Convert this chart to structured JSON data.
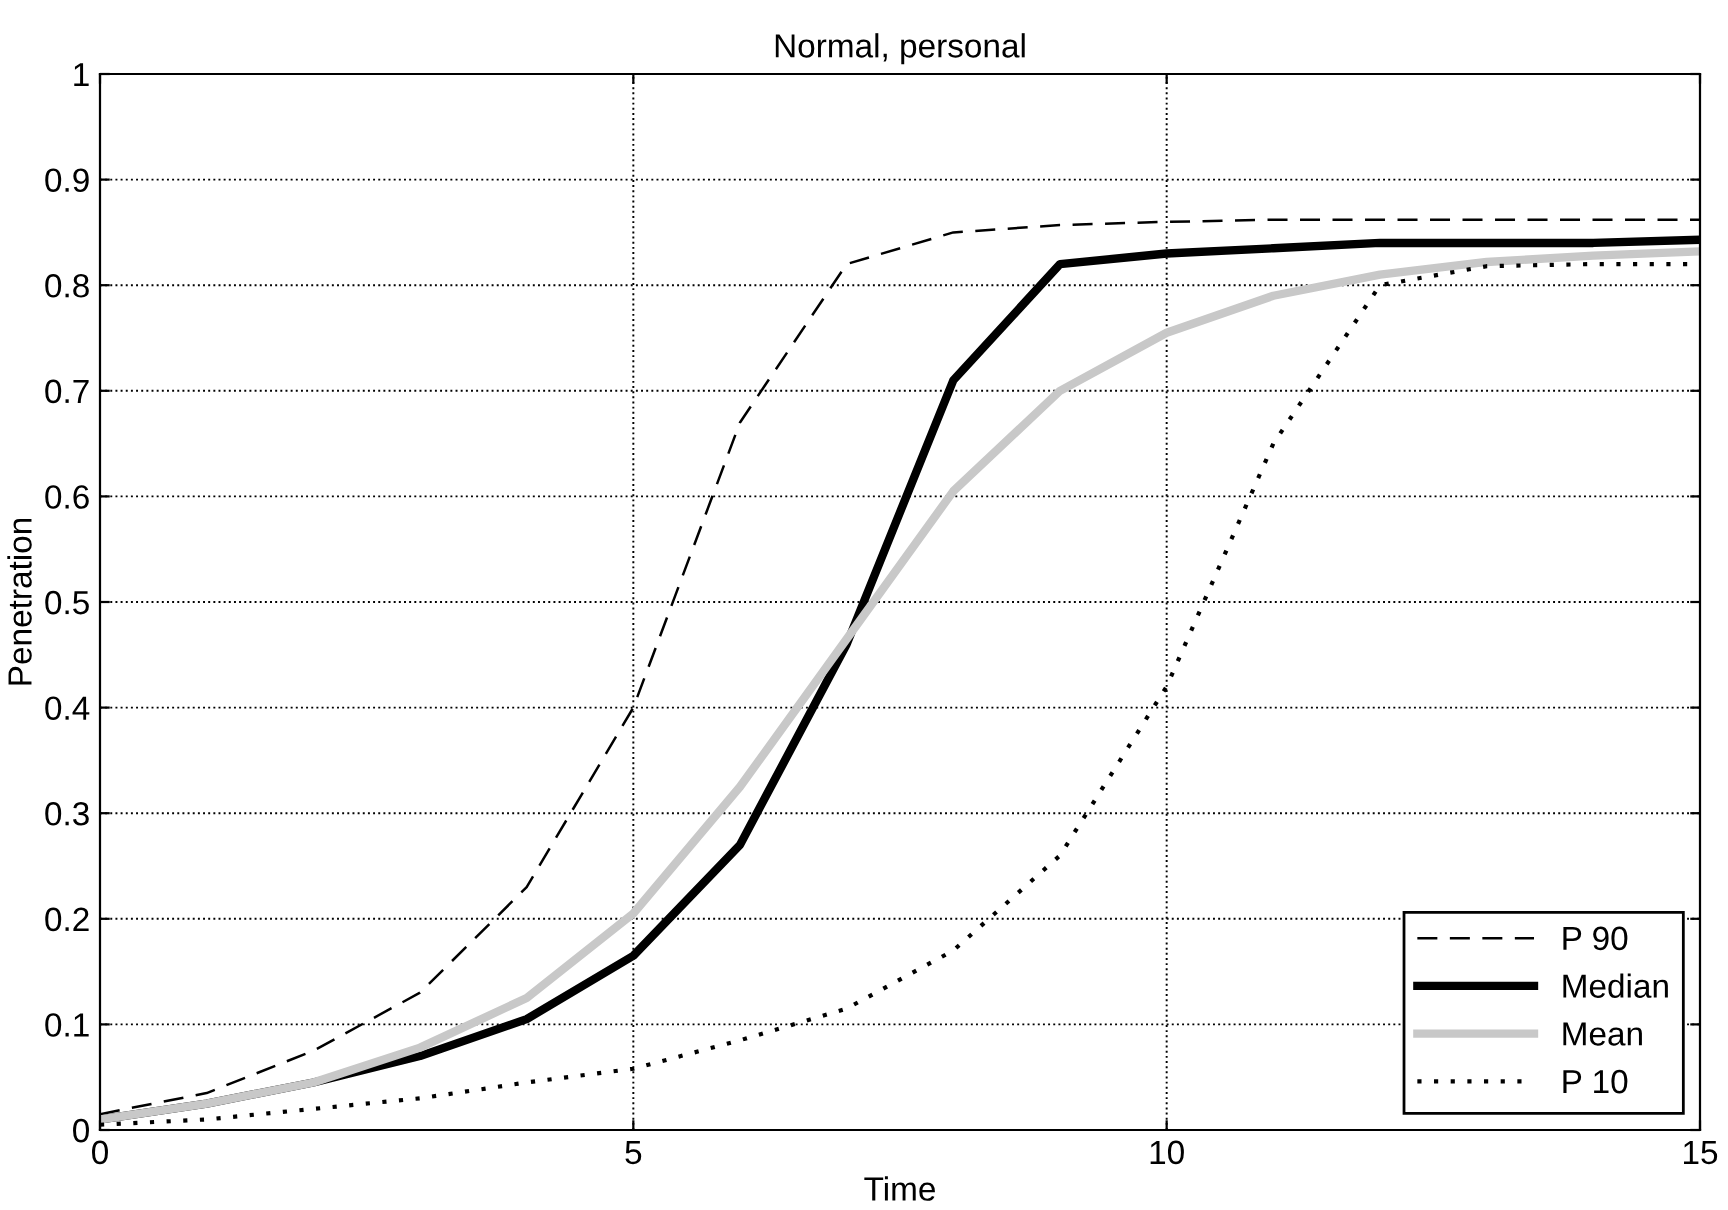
{
  "chart_data": {
    "type": "line",
    "title": "Normal, personal",
    "xlabel": "Time",
    "ylabel": "Penetration",
    "x": [
      0,
      1,
      2,
      3,
      4,
      5,
      6,
      7,
      8,
      9,
      10,
      11,
      12,
      13,
      14,
      15
    ],
    "series": [
      {
        "name": "P 90",
        "color": "#000000",
        "line_style": "dashed",
        "values": [
          0.015,
          0.035,
          0.075,
          0.13,
          0.23,
          0.4,
          0.67,
          0.82,
          0.85,
          0.857,
          0.86,
          0.862,
          0.862,
          0.862,
          0.862,
          0.862
        ]
      },
      {
        "name": "Median",
        "color": "#000000",
        "line_style": "solid",
        "values": [
          0.01,
          0.025,
          0.045,
          0.07,
          0.105,
          0.165,
          0.27,
          0.46,
          0.71,
          0.82,
          0.83,
          0.835,
          0.84,
          0.84,
          0.84,
          0.843
        ]
      },
      {
        "name": "Mean",
        "color": "#c8c8c8",
        "line_style": "solid",
        "values": [
          0.01,
          0.025,
          0.045,
          0.078,
          0.125,
          0.205,
          0.325,
          0.465,
          0.605,
          0.7,
          0.755,
          0.79,
          0.81,
          0.822,
          0.828,
          0.832
        ]
      },
      {
        "name": "P 10",
        "color": "#000000",
        "line_style": "dotted",
        "values": [
          0.005,
          0.01,
          0.02,
          0.03,
          0.045,
          0.058,
          0.085,
          0.115,
          0.17,
          0.26,
          0.42,
          0.65,
          0.8,
          0.818,
          0.82,
          0.82
        ]
      }
    ],
    "xlim": [
      0,
      15
    ],
    "xticks": [
      0,
      5,
      10,
      15
    ],
    "ylim": [
      0,
      1
    ],
    "yticks": [
      0,
      0.1,
      0.2,
      0.3,
      0.4,
      0.5,
      0.6,
      0.7,
      0.8,
      0.9,
      1
    ],
    "grid": true,
    "legend": "bottom right",
    "marker": "none"
  }
}
